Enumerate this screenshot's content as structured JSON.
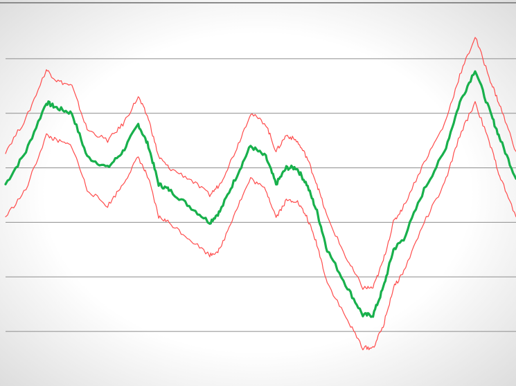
{
  "chart_data": {
    "type": "line",
    "title": "",
    "xlabel": "",
    "ylabel": "",
    "grid": true,
    "legend": "none",
    "xlim": [
      0,
      1
    ],
    "ylim": [
      0,
      7
    ],
    "gridlines_y": [
      1,
      2,
      3,
      4,
      5,
      6
    ],
    "x": [
      0,
      0.04,
      0.08,
      0.1,
      0.13,
      0.16,
      0.2,
      0.23,
      0.26,
      0.28,
      0.3,
      0.32,
      0.36,
      0.4,
      0.42,
      0.45,
      0.48,
      0.51,
      0.53,
      0.55,
      0.57,
      0.59,
      0.61,
      0.63,
      0.67,
      0.7,
      0.72,
      0.74,
      0.76,
      0.78,
      0.82,
      0.86,
      0.89,
      0.92,
      0.95,
      0.97,
      1.0
    ],
    "series": [
      {
        "values": [
          3.7,
          4.3,
          5.2,
          5.1,
          5.0,
          4.2,
          4.0,
          4.3,
          4.8,
          4.4,
          3.7,
          3.6,
          3.3,
          3.0,
          3.2,
          3.8,
          4.4,
          4.2,
          3.7,
          4.0,
          4.0,
          3.7,
          3.2,
          2.5,
          1.8,
          1.3,
          1.3,
          1.8,
          2.5,
          2.7,
          3.6,
          4.3,
          5.2,
          5.8,
          5.0,
          4.5,
          3.8
        ],
        "color": "#18b04c"
      },
      {
        "values": [
          4.3,
          4.9,
          5.8,
          5.6,
          5.5,
          4.7,
          4.5,
          4.8,
          5.3,
          4.9,
          4.2,
          4.0,
          3.8,
          3.5,
          3.7,
          4.3,
          5.0,
          4.8,
          4.3,
          4.6,
          4.5,
          4.2,
          3.7,
          3.1,
          2.3,
          1.8,
          1.8,
          2.3,
          3.0,
          3.3,
          4.1,
          4.8,
          5.7,
          6.4,
          5.6,
          5.1,
          4.3
        ],
        "color": "#ff4b4b"
      },
      {
        "values": [
          3.1,
          3.6,
          4.6,
          4.5,
          4.4,
          3.6,
          3.3,
          3.7,
          4.2,
          3.8,
          3.1,
          3.0,
          2.7,
          2.4,
          2.5,
          3.2,
          3.8,
          3.6,
          3.1,
          3.4,
          3.4,
          3.1,
          2.6,
          1.9,
          1.2,
          0.7,
          0.7,
          1.1,
          1.8,
          2.1,
          3.0,
          3.7,
          4.6,
          5.2,
          4.4,
          3.8,
          3.1
        ],
        "color": "#ff4b4b"
      }
    ]
  }
}
